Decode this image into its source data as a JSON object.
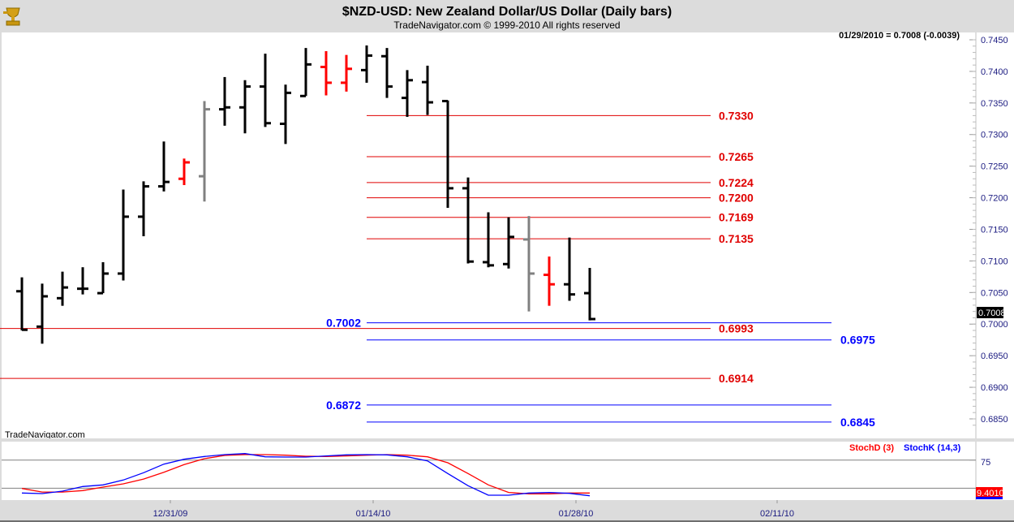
{
  "header": {
    "title": "$NZD-USD:  New Zealand Dollar/US Dollar  (Daily bars)",
    "copyright": "TradeNavigator.com © 1999-2010 All rights reserved",
    "logo": "trade-navigator-trophy-logo"
  },
  "watermark": "TradeNavigator.com",
  "last_quote": "01/29/2010 = 0.7008 (-0.0039)",
  "colors": {
    "up": "#000000",
    "red_bar": "#ff0000",
    "gray_bar": "#808080",
    "retracement": "#e00000",
    "projection": "#0000ff",
    "stochK": "#0000ff",
    "stochD": "#ff0000"
  },
  "chart_data": [
    {
      "type": "ohlc",
      "title": "$NZD-USD:  New Zealand Dollar/US Dollar  (Daily bars)",
      "ylim": [
        0.683,
        0.746
      ],
      "y_ticks": [
        "0.7450",
        "0.7400",
        "0.7350",
        "0.7300",
        "0.7250",
        "0.7200",
        "0.7150",
        "0.7100",
        "0.7050",
        "0.7000",
        "0.6950",
        "0.6900",
        "0.6850"
      ],
      "x_ticks": [
        "12/31/09",
        "01/14/10",
        "01/28/10",
        "02/11/10"
      ],
      "last_price_label": "0.7008",
      "bars": [
        {
          "date": "12/22/09",
          "o": 0.7052,
          "h": 0.7074,
          "l": 0.699,
          "c": 0.6991,
          "color": "black"
        },
        {
          "date": "12/23/09",
          "o": 0.6996,
          "h": 0.7064,
          "l": 0.6969,
          "c": 0.7044,
          "color": "black"
        },
        {
          "date": "12/24/09",
          "o": 0.7041,
          "h": 0.7083,
          "l": 0.7029,
          "c": 0.7058,
          "color": "black"
        },
        {
          "date": "12/25/09",
          "o": 0.7056,
          "h": 0.709,
          "l": 0.7047,
          "c": 0.7056,
          "color": "black"
        },
        {
          "date": "12/28/09",
          "o": 0.7049,
          "h": 0.7098,
          "l": 0.7049,
          "c": 0.708,
          "color": "black"
        },
        {
          "date": "12/29/09",
          "o": 0.708,
          "h": 0.7213,
          "l": 0.7069,
          "c": 0.717,
          "color": "black"
        },
        {
          "date": "12/30/09",
          "o": 0.717,
          "h": 0.7226,
          "l": 0.7139,
          "c": 0.7218,
          "color": "black"
        },
        {
          "date": "12/31/09",
          "o": 0.7218,
          "h": 0.7289,
          "l": 0.721,
          "c": 0.7225,
          "color": "black"
        },
        {
          "date": "01/01/10",
          "o": 0.723,
          "h": 0.7262,
          "l": 0.722,
          "c": 0.7256,
          "color": "red"
        },
        {
          "date": "01/04/10",
          "o": 0.7234,
          "h": 0.7353,
          "l": 0.7194,
          "c": 0.734,
          "color": "gray"
        },
        {
          "date": "01/05/10",
          "o": 0.734,
          "h": 0.7391,
          "l": 0.7314,
          "c": 0.7343,
          "color": "black"
        },
        {
          "date": "01/06/10",
          "o": 0.7343,
          "h": 0.7386,
          "l": 0.7302,
          "c": 0.7376,
          "color": "black"
        },
        {
          "date": "01/07/10",
          "o": 0.7376,
          "h": 0.7428,
          "l": 0.7312,
          "c": 0.7318,
          "color": "black"
        },
        {
          "date": "01/08/10",
          "o": 0.7317,
          "h": 0.7379,
          "l": 0.7285,
          "c": 0.7366,
          "color": "black"
        },
        {
          "date": "01/11/10",
          "o": 0.7361,
          "h": 0.7437,
          "l": 0.7361,
          "c": 0.7411,
          "color": "black"
        },
        {
          "date": "01/12/10",
          "o": 0.7407,
          "h": 0.7432,
          "l": 0.7362,
          "c": 0.7382,
          "color": "red"
        },
        {
          "date": "01/13/10",
          "o": 0.7382,
          "h": 0.7426,
          "l": 0.7368,
          "c": 0.7404,
          "color": "red"
        },
        {
          "date": "01/14/10",
          "o": 0.7402,
          "h": 0.7441,
          "l": 0.7382,
          "c": 0.7425,
          "color": "black"
        },
        {
          "date": "01/15/10",
          "o": 0.7424,
          "h": 0.7437,
          "l": 0.7358,
          "c": 0.7376,
          "color": "black"
        },
        {
          "date": "01/18/10",
          "o": 0.7358,
          "h": 0.7402,
          "l": 0.7328,
          "c": 0.7386,
          "color": "black"
        },
        {
          "date": "01/19/10",
          "o": 0.7383,
          "h": 0.7409,
          "l": 0.7331,
          "c": 0.7351,
          "color": "black"
        },
        {
          "date": "01/20/10",
          "o": 0.7353,
          "h": 0.7354,
          "l": 0.7184,
          "c": 0.7215,
          "color": "black"
        },
        {
          "date": "01/21/10",
          "o": 0.7215,
          "h": 0.7232,
          "l": 0.7096,
          "c": 0.7099,
          "color": "black"
        },
        {
          "date": "01/22/10",
          "o": 0.7098,
          "h": 0.7177,
          "l": 0.709,
          "c": 0.7093,
          "color": "black"
        },
        {
          "date": "01/25/10",
          "o": 0.7095,
          "h": 0.7169,
          "l": 0.7088,
          "c": 0.7138,
          "color": "black"
        },
        {
          "date": "01/26/10",
          "o": 0.7134,
          "h": 0.7171,
          "l": 0.702,
          "c": 0.708,
          "color": "gray"
        },
        {
          "date": "01/27/10",
          "o": 0.7078,
          "h": 0.7107,
          "l": 0.7029,
          "c": 0.7063,
          "color": "red"
        },
        {
          "date": "01/28/10",
          "o": 0.7063,
          "h": 0.7137,
          "l": 0.7037,
          "c": 0.7047,
          "color": "black"
        },
        {
          "date": "01/29/10",
          "o": 0.7049,
          "h": 0.7089,
          "l": 0.7006,
          "c": 0.7008,
          "color": "black"
        }
      ],
      "levels": [
        {
          "value": 0.733,
          "label": "0.7330",
          "group": "retracement",
          "label_side": "right"
        },
        {
          "value": 0.7265,
          "label": "0.7265",
          "group": "retracement",
          "label_side": "right"
        },
        {
          "value": 0.7224,
          "label": "0.7224",
          "group": "retracement",
          "label_side": "right"
        },
        {
          "value": 0.72,
          "label": "0.7200",
          "group": "retracement",
          "label_side": "right"
        },
        {
          "value": 0.7169,
          "label": "0.7169",
          "group": "retracement",
          "label_side": "right"
        },
        {
          "value": 0.7135,
          "label": "0.7135",
          "group": "retracement",
          "label_side": "right"
        },
        {
          "value": 0.6993,
          "label": "0.6993",
          "group": "support",
          "label_side": "right"
        },
        {
          "value": 0.6914,
          "label": "0.6914",
          "group": "support",
          "label_side": "right"
        },
        {
          "value": 0.7002,
          "label": "0.7002",
          "group": "projection",
          "label_side": "left"
        },
        {
          "value": 0.6975,
          "label": "0.6975",
          "group": "projection",
          "label_side": "right"
        },
        {
          "value": 0.6872,
          "label": "0.6872",
          "group": "projection",
          "label_side": "left"
        },
        {
          "value": 0.6845,
          "label": "0.6845",
          "group": "projection",
          "label_side": "right"
        }
      ]
    },
    {
      "type": "line",
      "ylim": [
        0,
        100
      ],
      "y_ticks": [
        "75"
      ],
      "reference_lines": [
        75,
        25
      ],
      "last_value_label": "9.4010",
      "series": [
        {
          "name": "StochD (3)",
          "color": "#ff0000",
          "values": [
            24.5,
            18.2,
            18.2,
            20.7,
            27,
            32.7,
            41.3,
            53.4,
            66.9,
            77.4,
            83.2,
            84.7,
            84.7,
            83.7,
            81.8,
            81.3,
            82.3,
            83.7,
            84.7,
            83.7,
            80.8,
            70.2,
            51,
            30.8,
            17.4,
            15,
            15,
            16.4,
            16.4
          ]
        },
        {
          "name": "StochK (14,3)",
          "color": "#0000ff",
          "values": [
            16.4,
            15.4,
            19.7,
            28,
            30.8,
            39.5,
            52.5,
            67.8,
            76.5,
            81.3,
            84.7,
            86.6,
            80.8,
            80.3,
            80.3,
            82.3,
            84.2,
            84.7,
            84.2,
            80.8,
            73.6,
            51,
            29.4,
            12.5,
            12.5,
            16.4,
            17.4,
            15.9,
            11.5
          ]
        }
      ]
    }
  ]
}
